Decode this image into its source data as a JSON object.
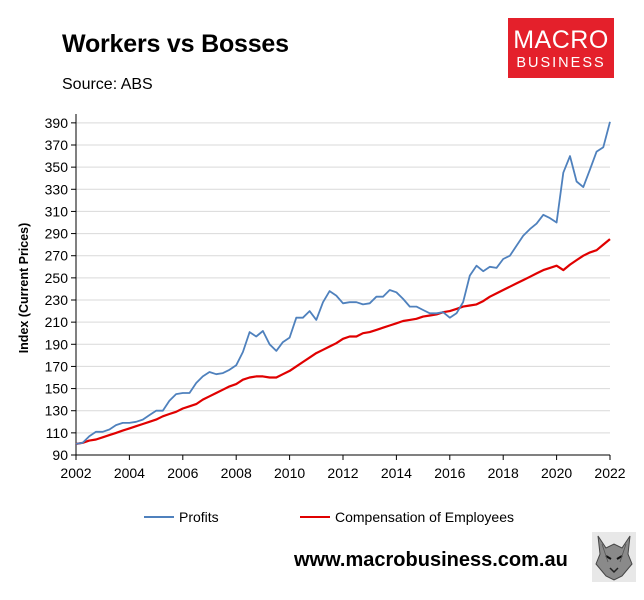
{
  "header": {
    "title": "Workers vs Bosses",
    "source": "Source: ABS"
  },
  "logo": {
    "line1": "MACRO",
    "line2": "BUSINESS",
    "color": "#e4202b"
  },
  "footer": {
    "website": "www.macrobusiness.com.au",
    "mascot_icon": "wolf-icon"
  },
  "chart_data": {
    "type": "line",
    "title": "Workers vs Bosses",
    "ylabel": "Index (Current Prices)",
    "xlabel": "",
    "xlim": [
      2002,
      2022
    ],
    "ylim": [
      90,
      400
    ],
    "x_ticks": [
      "2002",
      "2004",
      "2006",
      "2008",
      "2010",
      "2012",
      "2014",
      "2016",
      "2018",
      "2020",
      "2022"
    ],
    "y_ticks": [
      "90",
      "110",
      "130",
      "150",
      "170",
      "190",
      "210",
      "230",
      "250",
      "270",
      "290",
      "310",
      "330",
      "350",
      "370",
      "390"
    ],
    "grid": "horizontal",
    "legend_position": "bottom",
    "x": [
      2002.0,
      2002.25,
      2002.5,
      2002.75,
      2003.0,
      2003.25,
      2003.5,
      2003.75,
      2004.0,
      2004.25,
      2004.5,
      2004.75,
      2005.0,
      2005.25,
      2005.5,
      2005.75,
      2006.0,
      2006.25,
      2006.5,
      2006.75,
      2007.0,
      2007.25,
      2007.5,
      2007.75,
      2008.0,
      2008.25,
      2008.5,
      2008.75,
      2009.0,
      2009.25,
      2009.5,
      2009.75,
      2010.0,
      2010.25,
      2010.5,
      2010.75,
      2011.0,
      2011.25,
      2011.5,
      2011.75,
      2012.0,
      2012.25,
      2012.5,
      2012.75,
      2013.0,
      2013.25,
      2013.5,
      2013.75,
      2014.0,
      2014.25,
      2014.5,
      2014.75,
      2015.0,
      2015.25,
      2015.5,
      2015.75,
      2016.0,
      2016.25,
      2016.5,
      2016.75,
      2017.0,
      2017.25,
      2017.5,
      2017.75,
      2018.0,
      2018.25,
      2018.5,
      2018.75,
      2019.0,
      2019.25,
      2019.5,
      2019.75,
      2020.0,
      2020.25,
      2020.5,
      2020.75,
      2021.0,
      2021.25,
      2021.5,
      2021.75,
      2022.0
    ],
    "series": [
      {
        "name": "Profits",
        "color": "#4f81bd",
        "values": [
          100,
          101,
          107,
          111,
          111,
          113,
          117,
          119,
          119,
          120,
          122,
          126,
          130,
          130,
          139,
          145,
          146,
          146,
          155,
          161,
          165,
          163,
          164,
          167,
          171,
          183,
          201,
          197,
          202,
          190,
          184,
          192,
          196,
          214,
          214,
          220,
          212,
          228,
          238,
          234,
          227,
          228,
          228,
          226,
          227,
          233,
          233,
          239,
          237,
          231,
          224,
          224,
          221,
          218,
          218,
          219,
          214,
          218,
          228,
          252,
          261,
          256,
          260,
          259,
          267,
          270,
          279,
          288,
          294,
          299,
          307,
          304,
          300,
          345,
          360,
          337,
          332,
          348,
          364,
          368,
          391
        ]
      },
      {
        "name": "Compensation of Employees",
        "color": "#e00000",
        "values": [
          100,
          101,
          103,
          104,
          106,
          108,
          110,
          112,
          114,
          116,
          118,
          120,
          122,
          125,
          127,
          129,
          132,
          134,
          136,
          140,
          143,
          146,
          149,
          152,
          154,
          158,
          160,
          161,
          161,
          160,
          160,
          163,
          166,
          170,
          174,
          178,
          182,
          185,
          188,
          191,
          195,
          197,
          197,
          200,
          201,
          203,
          205,
          207,
          209,
          211,
          212,
          213,
          215,
          216,
          217,
          219,
          220,
          222,
          224,
          225,
          226,
          229,
          233,
          236,
          239,
          242,
          245,
          248,
          251,
          254,
          257,
          259,
          261,
          257,
          262,
          266,
          270,
          273,
          275,
          280,
          285
        ]
      }
    ]
  }
}
